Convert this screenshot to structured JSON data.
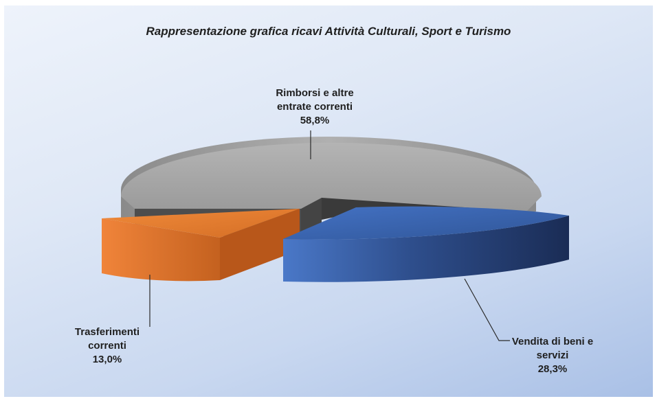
{
  "chart_data": {
    "type": "pie",
    "title": "Rappresentazione grafica ricavi Attività Culturali, Sport e Turismo",
    "series": [
      {
        "slices": [
          {
            "label_line1": "Rimborsi e altre",
            "label_line2": "entrate correnti",
            "value": 58.8,
            "value_label": "58,8%",
            "color": "#a6a6a6"
          },
          {
            "label_line1": "Vendita di beni e",
            "label_line2": "servizi",
            "value": 28.3,
            "value_label": "28,3%",
            "color": "#3a66b4"
          },
          {
            "label_line1": "Trasferimenti",
            "label_line2": "correnti",
            "value": 13.0,
            "value_label": "13,0%",
            "color": "#e07a30"
          }
        ]
      }
    ],
    "style": "3d-exploded"
  }
}
